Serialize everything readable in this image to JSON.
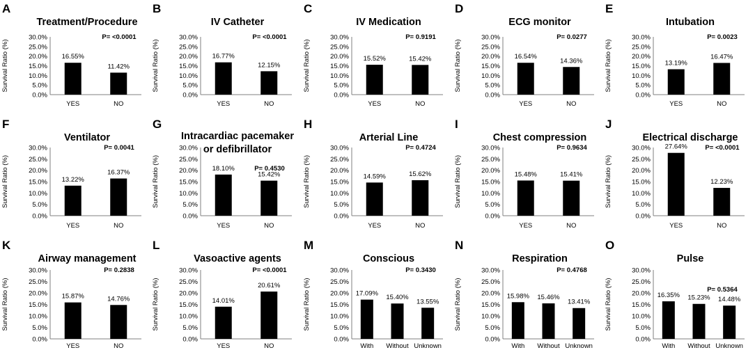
{
  "chart_data": [
    {
      "type": "bar",
      "panel": "A",
      "title": [
        "Treatment/Procedure"
      ],
      "categories": [
        "YES",
        "NO"
      ],
      "values": [
        16.55,
        11.42
      ],
      "labels": [
        "16.55%",
        "11.42%"
      ],
      "p_value": "P= <0.0001",
      "ylabel": "Survival Ratio (%)",
      "yticks": [
        "0.0%",
        "5.0%",
        "10.0%",
        "15.0%",
        "20.0%",
        "25.0%",
        "30.0%"
      ],
      "ylim": [
        0,
        30
      ]
    },
    {
      "type": "bar",
      "panel": "B",
      "title": [
        "IV Catheter"
      ],
      "categories": [
        "YES",
        "NO"
      ],
      "values": [
        16.77,
        12.15
      ],
      "labels": [
        "16.77%",
        "12.15%"
      ],
      "p_value": "P= <0.0001",
      "ylabel": "Survival Ratio (%)",
      "yticks": [
        "0.0%",
        "5.0%",
        "10.0%",
        "15.0%",
        "20.0%",
        "25.0%",
        "30.0%"
      ],
      "ylim": [
        0,
        30
      ]
    },
    {
      "type": "bar",
      "panel": "C",
      "title": [
        "IV Medication"
      ],
      "categories": [
        "YES",
        "NO"
      ],
      "values": [
        15.52,
        15.42
      ],
      "labels": [
        "15.52%",
        "15.42%"
      ],
      "p_value": "P= 0.9191",
      "ylabel": "Survival Ratio (%)",
      "yticks": [
        "0.0%",
        "5.0%",
        "10.0%",
        "15.0%",
        "20.0%",
        "25.0%",
        "30.0%"
      ],
      "ylim": [
        0,
        30
      ]
    },
    {
      "type": "bar",
      "panel": "D",
      "title": [
        "ECG monitor"
      ],
      "categories": [
        "YES",
        "NO"
      ],
      "values": [
        16.54,
        14.36
      ],
      "labels": [
        "16.54%",
        "14.36%"
      ],
      "p_value": "P= 0.0277",
      "ylabel": "Survival Ratio (%)",
      "yticks": [
        "0.0%",
        "5.0%",
        "10.0%",
        "15.0%",
        "20.0%",
        "25.0%",
        "30.0%"
      ],
      "ylim": [
        0,
        30
      ]
    },
    {
      "type": "bar",
      "panel": "E",
      "title": [
        "Intubation"
      ],
      "categories": [
        "YES",
        "NO"
      ],
      "values": [
        13.19,
        16.47
      ],
      "labels": [
        "13.19%",
        "16.47%"
      ],
      "p_value": "P= 0.0023",
      "ylabel": "Survival Ratio (%)",
      "yticks": [
        "0.0%",
        "5.0%",
        "10.0%",
        "15.0%",
        "20.0%",
        "25.0%",
        "30.0%"
      ],
      "ylim": [
        0,
        30
      ]
    },
    {
      "type": "bar",
      "panel": "F",
      "title": [
        "Ventilator"
      ],
      "categories": [
        "YES",
        "NO"
      ],
      "values": [
        13.22,
        16.37
      ],
      "labels": [
        "13.22%",
        "16.37%"
      ],
      "p_value": "P= 0.0041",
      "ylabel": "Survival Ratio (%)",
      "yticks": [
        "0.0%",
        "5.0%",
        "10.0%",
        "15.0%",
        "20.0%",
        "25.0%",
        "30.0%"
      ],
      "ylim": [
        0,
        30
      ]
    },
    {
      "type": "bar",
      "panel": "G",
      "title": [
        "Intracardiac pacemaker",
        "or defibrillator"
      ],
      "categories": [
        "YES",
        "NO"
      ],
      "values": [
        18.1,
        15.42
      ],
      "labels": [
        "18.10%",
        "15.42%"
      ],
      "p_value": "P= 0.4530",
      "ylabel": "Survival Ratio (%)",
      "yticks": [
        "0.0%",
        "5.0%",
        "10.0%",
        "15.0%",
        "20.0%",
        "25.0%",
        "30.0%"
      ],
      "ylim": [
        0,
        30
      ]
    },
    {
      "type": "bar",
      "panel": "H",
      "title": [
        "Arterial Line"
      ],
      "categories": [
        "YES",
        "NO"
      ],
      "values": [
        14.59,
        15.62
      ],
      "labels": [
        "14.59%",
        "15.62%"
      ],
      "p_value": "P= 0.4724",
      "ylabel": "Survival Ratio (%)",
      "yticks": [
        "0.0%",
        "5.0%",
        "10.0%",
        "15.0%",
        "20.0%",
        "25.0%",
        "30.0%"
      ],
      "ylim": [
        0,
        30
      ]
    },
    {
      "type": "bar",
      "panel": "I",
      "title": [
        "Chest compression"
      ],
      "categories": [
        "YES",
        "NO"
      ],
      "values": [
        15.48,
        15.41
      ],
      "labels": [
        "15.48%",
        "15.41%"
      ],
      "p_value": "P= 0.9634",
      "ylabel": "Survival Ratio (%)",
      "yticks": [
        "0.0%",
        "5.0%",
        "10.0%",
        "15.0%",
        "20.0%",
        "25.0%",
        "30.0%"
      ],
      "ylim": [
        0,
        30
      ]
    },
    {
      "type": "bar",
      "panel": "J",
      "title": [
        "Electrical discharge"
      ],
      "categories": [
        "YES",
        "NO"
      ],
      "values": [
        27.64,
        12.23
      ],
      "labels": [
        "27.64%",
        "12.23%"
      ],
      "p_value": "P= <0.0001",
      "ylabel": "Survival Ratio (%)",
      "yticks": [
        "0.0%",
        "5.0%",
        "10.0%",
        "15.0%",
        "20.0%",
        "25.0%",
        "30.0%"
      ],
      "ylim": [
        0,
        30
      ]
    },
    {
      "type": "bar",
      "panel": "K",
      "title": [
        "Airway management"
      ],
      "categories": [
        "YES",
        "NO"
      ],
      "values": [
        15.87,
        14.76
      ],
      "labels": [
        "15.87%",
        "14.76%"
      ],
      "p_value": "P= 0.2838",
      "ylabel": "Survival Ratio (%)",
      "yticks": [
        "0.0%",
        "5.0%",
        "10.0%",
        "15.0%",
        "20.0%",
        "25.0%",
        "30.0%"
      ],
      "ylim": [
        0,
        30
      ]
    },
    {
      "type": "bar",
      "panel": "L",
      "title": [
        "Vasoactive agents"
      ],
      "categories": [
        "YES",
        "NO"
      ],
      "values": [
        14.01,
        20.61
      ],
      "labels": [
        "14.01%",
        "20.61%"
      ],
      "p_value": "P= <0.0001",
      "ylabel": "Survival Ratio (%)",
      "yticks": [
        "0.0%",
        "5.0%",
        "10.0%",
        "15.0%",
        "20.0%",
        "25.0%",
        "30.0%"
      ],
      "ylim": [
        0,
        30
      ]
    },
    {
      "type": "bar",
      "panel": "M",
      "title": [
        "Conscious"
      ],
      "categories": [
        "With",
        "Without",
        "Unknown"
      ],
      "values": [
        17.09,
        15.4,
        13.55
      ],
      "labels": [
        "17.09%",
        "15.40%",
        "13.55%"
      ],
      "p_value": "P= 0.3430",
      "ylabel": "Survival Ratio (%)",
      "yticks": [
        "0.0%",
        "5.0%",
        "10.0%",
        "15.0%",
        "20.0%",
        "25.0%",
        "30.0%"
      ],
      "ylim": [
        0,
        30
      ]
    },
    {
      "type": "bar",
      "panel": "N",
      "title": [
        "Respiration"
      ],
      "categories": [
        "With",
        "Without",
        "Unknown"
      ],
      "values": [
        15.98,
        15.46,
        13.41
      ],
      "labels": [
        "15.98%",
        "15.46%",
        "13.41%"
      ],
      "p_value": "P= 0.4768",
      "ylabel": "Survival Ratio (%)",
      "yticks": [
        "0.0%",
        "5.0%",
        "10.0%",
        "15.0%",
        "20.0%",
        "25.0%",
        "30.0%"
      ],
      "ylim": [
        0,
        30
      ]
    },
    {
      "type": "bar",
      "panel": "O",
      "title": [
        "Pulse"
      ],
      "categories": [
        "With",
        "Without",
        "Unknown"
      ],
      "values": [
        16.35,
        15.23,
        14.48
      ],
      "labels": [
        "16.35%",
        "15.23%",
        "14.48%"
      ],
      "p_value": "P= 0.5364",
      "ylabel": "Survival Ratio (%)",
      "yticks": [
        "0.0%",
        "5.0%",
        "10.0%",
        "15.0%",
        "20.0%",
        "25.0%",
        "30.0%"
      ],
      "ylim": [
        0,
        30
      ]
    }
  ]
}
